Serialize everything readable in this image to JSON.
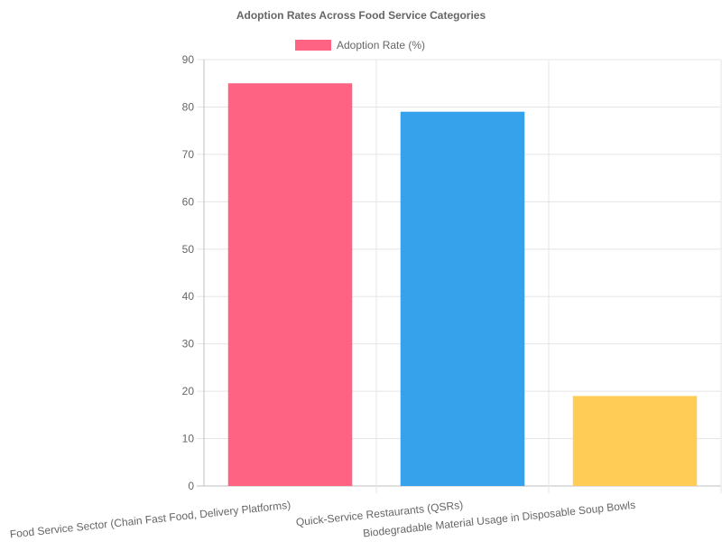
{
  "chart_data": {
    "type": "bar",
    "title": "Adoption Rates Across Food Service Categories",
    "xlabel": "",
    "ylabel": "",
    "categories": [
      "Food Service Sector (Chain Fast Food, Delivery Platforms)",
      "Quick-Service Restaurants (QSRs)",
      "Biodegradable Material Usage in Disposable Soup Bowls"
    ],
    "series": [
      {
        "name": "Adoption Rate (%)",
        "values": [
          85,
          79,
          19
        ]
      }
    ],
    "bar_colors": [
      "#ff6384",
      "#36a2eb",
      "#ffcd56"
    ],
    "legend_color": "#ff6384",
    "ylim": [
      0,
      90
    ],
    "yticks": [
      "0",
      "10",
      "20",
      "30",
      "40",
      "50",
      "60",
      "70",
      "80",
      "90"
    ],
    "grid": true,
    "legend_position": "top"
  }
}
